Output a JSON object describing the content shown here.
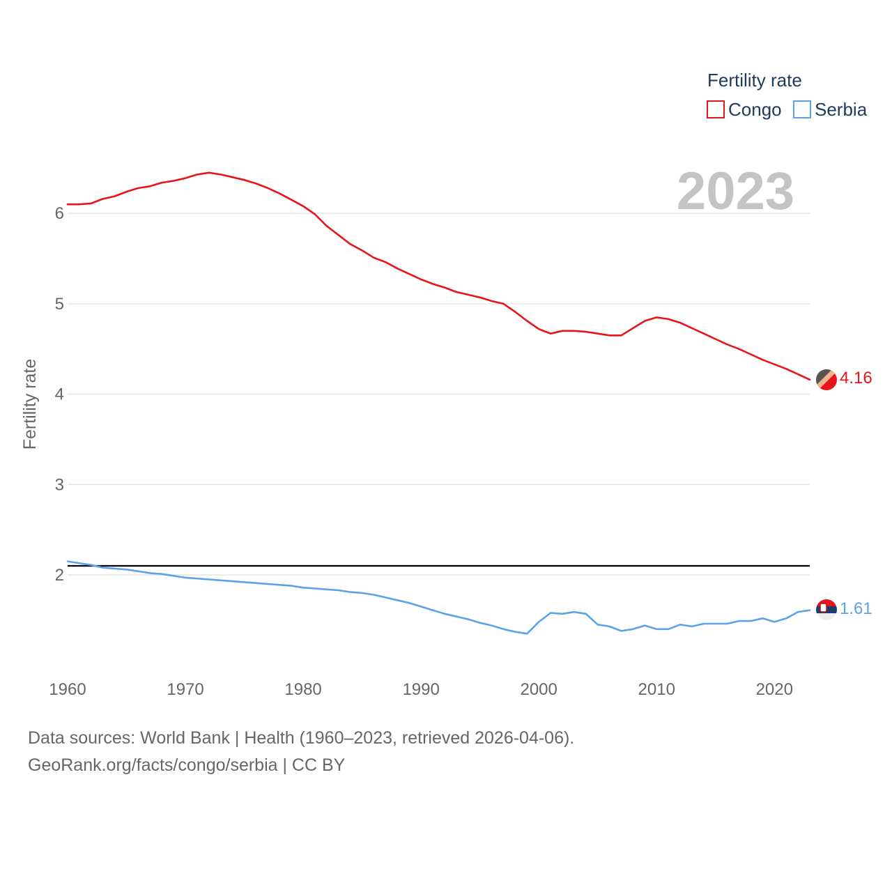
{
  "chart_data": {
    "type": "line",
    "title": "",
    "year_label": "2023",
    "xlabel": "",
    "ylabel": "Fertility rate",
    "xlim": [
      1960,
      2023
    ],
    "ylim": [
      0.95,
      7.1
    ],
    "x_ticks": [
      1960,
      1970,
      1980,
      1990,
      2000,
      2010,
      2020
    ],
    "y_ticks": [
      2,
      3,
      4,
      5,
      6
    ],
    "reference_line": 2.1,
    "legend": {
      "title": "Fertility rate",
      "position": "top-right"
    },
    "x": [
      1960,
      1961,
      1962,
      1963,
      1964,
      1965,
      1966,
      1967,
      1968,
      1969,
      1970,
      1971,
      1972,
      1973,
      1974,
      1975,
      1976,
      1977,
      1978,
      1979,
      1980,
      1981,
      1982,
      1983,
      1984,
      1985,
      1986,
      1987,
      1988,
      1989,
      1990,
      1991,
      1992,
      1993,
      1994,
      1995,
      1996,
      1997,
      1998,
      1999,
      2000,
      2001,
      2002,
      2003,
      2004,
      2005,
      2006,
      2007,
      2008,
      2009,
      2010,
      2011,
      2012,
      2013,
      2014,
      2015,
      2016,
      2017,
      2018,
      2019,
      2020,
      2021,
      2022,
      2023
    ],
    "series": [
      {
        "name": "Congo",
        "color": "#e8141b",
        "end_value": "4.16",
        "values": [
          6.1,
          6.1,
          6.11,
          6.16,
          6.19,
          6.24,
          6.28,
          6.3,
          6.34,
          6.36,
          6.39,
          6.43,
          6.45,
          6.43,
          6.4,
          6.37,
          6.33,
          6.28,
          6.22,
          6.15,
          6.08,
          5.99,
          5.86,
          5.76,
          5.66,
          5.59,
          5.51,
          5.46,
          5.39,
          5.33,
          5.27,
          5.22,
          5.18,
          5.13,
          5.1,
          5.07,
          5.03,
          5.0,
          4.91,
          4.81,
          4.72,
          4.67,
          4.7,
          4.7,
          4.69,
          4.67,
          4.65,
          4.65,
          4.73,
          4.81,
          4.85,
          4.83,
          4.79,
          4.73,
          4.67,
          4.61,
          4.55,
          4.5,
          4.44,
          4.38,
          4.33,
          4.28,
          4.22,
          4.16
        ]
      },
      {
        "name": "Serbia",
        "color": "#5aa3e8",
        "end_value": "1.61",
        "values": [
          2.15,
          2.13,
          2.11,
          2.08,
          2.07,
          2.06,
          2.04,
          2.02,
          2.01,
          1.99,
          1.97,
          1.96,
          1.95,
          1.94,
          1.93,
          1.92,
          1.91,
          1.9,
          1.89,
          1.88,
          1.86,
          1.85,
          1.84,
          1.83,
          1.81,
          1.8,
          1.78,
          1.75,
          1.72,
          1.69,
          1.65,
          1.61,
          1.57,
          1.54,
          1.51,
          1.47,
          1.44,
          1.4,
          1.37,
          1.35,
          1.48,
          1.58,
          1.57,
          1.59,
          1.57,
          1.45,
          1.43,
          1.38,
          1.4,
          1.44,
          1.4,
          1.4,
          1.45,
          1.43,
          1.46,
          1.46,
          1.46,
          1.49,
          1.49,
          1.52,
          1.48,
          1.52,
          1.59,
          1.61
        ]
      }
    ]
  },
  "footer": {
    "source": "Data sources: World Bank | Health (1960–2023, retrieved 2026-04-06).",
    "url": "GeoRank.org/facts/congo/serbia | CC BY"
  }
}
